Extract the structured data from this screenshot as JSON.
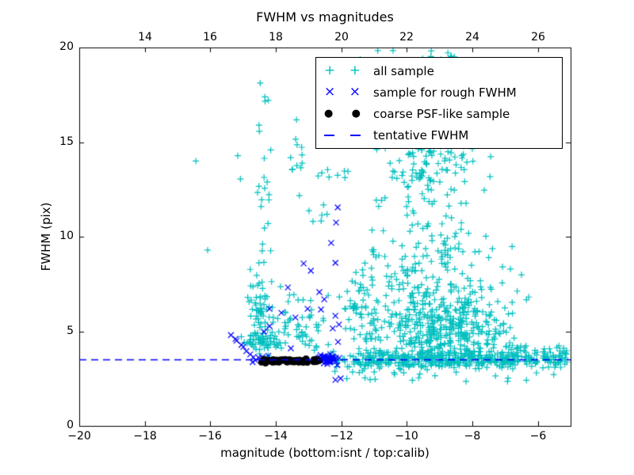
{
  "chart_data": {
    "type": "scatter",
    "title": "FWHM vs magnitudes",
    "xlabel": "magnitude (bottom:isnt / top:calib)",
    "ylabel": "FWHM (pix)",
    "xlim": [
      -20,
      -5
    ],
    "ylim": [
      0,
      20
    ],
    "grid": false,
    "x_ticks_bottom": {
      "values": [
        -20,
        -18,
        -16,
        -14,
        -12,
        -10,
        -8,
        -6
      ],
      "labels": [
        "−20",
        "−18",
        "−16",
        "−14",
        "−12",
        "−10",
        "−8",
        "−6"
      ]
    },
    "x_ticks_top": {
      "values": [
        14,
        16,
        18,
        20,
        22,
        24,
        26
      ],
      "labels": [
        "14",
        "16",
        "18",
        "20",
        "22",
        "24",
        "26"
      ],
      "offset_from_bottom": 32
    },
    "y_ticks": {
      "values": [
        0,
        5,
        10,
        15,
        20
      ],
      "labels": [
        "0",
        "5",
        "10",
        "15",
        "20"
      ]
    },
    "tentative_fwhm": 3.5,
    "colors": {
      "all_sample": "#00bfbf",
      "rough_fwhm": "#0000ff",
      "psf_like": "#000000",
      "tentative_line": "#0000ff"
    },
    "legend": {
      "position": "upper-right",
      "entries": [
        {
          "label": "all sample",
          "marker": "plus",
          "color": "#00bfbf"
        },
        {
          "label": "sample for rough FWHM",
          "marker": "x",
          "color": "#0000ff"
        },
        {
          "label": "coarse PSF-like sample",
          "marker": "dot",
          "color": "#000000"
        },
        {
          "label": "tentative FWHM",
          "marker": "dashed-line",
          "color": "#0000ff"
        }
      ]
    },
    "series": [
      {
        "name": "all sample",
        "marker": "plus",
        "color": "#00bfbf",
        "clusters": [
          {
            "kind": "gauss",
            "n": 380,
            "mx": -9.0,
            "sx": 2.1,
            "my": 3.5,
            "sy": 0.22,
            "xmin": -12.45,
            "xmax": -5.08,
            "ymin": 2.95,
            "ymax": 4.15
          },
          {
            "kind": "uniform",
            "n": 70,
            "xmin": -7.2,
            "xmax": -5.1,
            "ymin": 3.05,
            "ymax": 4.3
          },
          {
            "kind": "gauss",
            "n": 330,
            "mx": -8.85,
            "sx": 0.95,
            "my": 4.9,
            "sy": 1.15,
            "xmin": -11.5,
            "xmax": -6.2,
            "ymin": 3.5,
            "ymax": 8.6
          },
          {
            "kind": "gauss",
            "n": 185,
            "mx": -8.95,
            "sx": 1.05,
            "my": 7.6,
            "sy": 2.3,
            "xmin": -11.6,
            "xmax": -6.3,
            "ymin": 5.0,
            "ymax": 13.4
          },
          {
            "kind": "gauss",
            "n": 105,
            "mx": -9.3,
            "sx": 0.85,
            "my": 13.7,
            "sy": 1.15,
            "xmin": -11.3,
            "xmax": -6.8,
            "ymin": 11.2,
            "ymax": 15.7
          },
          {
            "kind": "uniform",
            "n": 26,
            "xmin": -10.6,
            "xmax": -6.9,
            "ymin": 15.8,
            "ymax": 19.6
          },
          {
            "kind": "uniform",
            "n": 10,
            "xmin": -11.6,
            "xmax": -8.2,
            "ymin": 19.3,
            "ymax": 19.9
          },
          {
            "kind": "gauss",
            "n": 55,
            "mx": -14.5,
            "sx": 0.16,
            "my": 6.1,
            "sy": 1.5,
            "xmin": -14.9,
            "xmax": -14.1,
            "ymin": 3.9,
            "ymax": 8.3
          },
          {
            "kind": "gauss",
            "n": 48,
            "mx": -14.42,
            "sx": 0.26,
            "my": 4.4,
            "sy": 0.38,
            "xmin": -15.15,
            "xmax": -13.9,
            "ymin": 3.7,
            "ymax": 5.3
          },
          {
            "kind": "uniform",
            "n": 24,
            "xmin": -14.65,
            "xmax": -14.15,
            "ymin": 8.5,
            "ymax": 19.2
          },
          {
            "kind": "uniform",
            "n": 12,
            "xmin": -13.55,
            "xmax": -13.15,
            "ymin": 11.0,
            "ymax": 16.4
          },
          {
            "kind": "gauss",
            "n": 66,
            "mx": -13.4,
            "sx": 0.55,
            "my": 5.1,
            "sy": 0.95,
            "xmin": -14.4,
            "xmax": -12.3,
            "ymin": 3.6,
            "ymax": 7.6
          },
          {
            "kind": "uniform",
            "n": 8,
            "xmin": -12.95,
            "xmax": -11.6,
            "ymin": 12.9,
            "ymax": 13.6
          },
          {
            "kind": "uniform",
            "n": 6,
            "xmin": -13.0,
            "xmax": -12.4,
            "ymin": 10.8,
            "ymax": 11.8
          },
          {
            "kind": "uniform",
            "n": 26,
            "xmin": -12.3,
            "xmax": -5.3,
            "ymin": 2.3,
            "ymax": 3.05
          },
          {
            "kind": "gauss",
            "n": 40,
            "mx": -11.4,
            "sx": 0.3,
            "my": 5.5,
            "sy": 1.3,
            "xmin": -12.1,
            "xmax": -10.8,
            "ymin": 3.6,
            "ymax": 8.8
          },
          {
            "kind": "gauss",
            "n": 55,
            "mx": -10.8,
            "sx": 0.6,
            "my": 6.5,
            "sy": 1.9,
            "xmin": -12.0,
            "xmax": -9.5,
            "ymin": 3.6,
            "ymax": 11.0
          }
        ],
        "points": [
          [
            -16.44,
            14.0
          ],
          [
            -15.16,
            14.28
          ],
          [
            -15.08,
            13.05
          ],
          [
            -16.08,
            9.29
          ]
        ]
      },
      {
        "name": "sample for rough FWHM",
        "marker": "x",
        "color": "#0000ff",
        "clusters": [
          {
            "kind": "gauss",
            "n": 52,
            "mx": -12.42,
            "sx": 0.14,
            "my": 3.52,
            "sy": 0.11,
            "xmin": -12.75,
            "xmax": -12.05,
            "ymin": 3.2,
            "ymax": 3.95
          },
          {
            "kind": "gauss",
            "n": 8,
            "mx": -14.45,
            "sx": 0.22,
            "my": 3.55,
            "sy": 0.12,
            "xmin": -14.8,
            "xmax": -14.1,
            "ymin": 3.3,
            "ymax": 3.8
          }
        ],
        "points": [
          [
            -13.15,
            8.58
          ],
          [
            -12.93,
            8.2
          ],
          [
            -12.18,
            8.62
          ],
          [
            -13.63,
            7.32
          ],
          [
            -12.67,
            7.07
          ],
          [
            -12.52,
            6.69
          ],
          [
            -14.19,
            6.19
          ],
          [
            -13.83,
            5.98
          ],
          [
            -13.03,
            6.19
          ],
          [
            -12.62,
            6.15
          ],
          [
            -13.4,
            5.73
          ],
          [
            -12.18,
            5.82
          ],
          [
            -14.19,
            5.27
          ],
          [
            -14.36,
            4.98
          ],
          [
            -15.23,
            4.6
          ],
          [
            -14.99,
            4.18
          ],
          [
            -13.54,
            4.1
          ],
          [
            -12.26,
            5.15
          ],
          [
            -12.07,
            5.36
          ],
          [
            -12.11,
            11.55
          ],
          [
            -12.16,
            10.75
          ],
          [
            -12.31,
            9.67
          ],
          [
            -12.02,
            2.51
          ],
          [
            -12.18,
            2.43
          ],
          [
            -12.1,
            4.44
          ],
          [
            -15.37,
            4.8
          ],
          [
            -15.2,
            4.5
          ],
          [
            -15.05,
            4.28
          ],
          [
            -14.9,
            3.95
          ],
          [
            -14.78,
            3.78
          ]
        ]
      },
      {
        "name": "coarse PSF-like sample",
        "marker": "dot",
        "color": "#000000",
        "clusters": [
          {
            "kind": "gauss",
            "n": 16,
            "mx": -14.3,
            "sx": 0.1,
            "my": 3.43,
            "sy": 0.055,
            "xmin": -14.56,
            "xmax": -14.05,
            "ymin": 3.26,
            "ymax": 3.6
          },
          {
            "kind": "gauss",
            "n": 13,
            "mx": -13.92,
            "sx": 0.09,
            "my": 3.46,
            "sy": 0.05,
            "xmin": -14.15,
            "xmax": -13.7,
            "ymin": 3.3,
            "ymax": 3.62
          },
          {
            "kind": "gauss",
            "n": 15,
            "mx": -13.52,
            "sx": 0.12,
            "my": 3.44,
            "sy": 0.055,
            "xmin": -13.78,
            "xmax": -13.28,
            "ymin": 3.28,
            "ymax": 3.6
          },
          {
            "kind": "gauss",
            "n": 13,
            "mx": -13.15,
            "sx": 0.1,
            "my": 3.42,
            "sy": 0.05,
            "xmin": -13.4,
            "xmax": -12.9,
            "ymin": 3.27,
            "ymax": 3.58
          },
          {
            "kind": "gauss",
            "n": 11,
            "mx": -12.77,
            "sx": 0.1,
            "my": 3.45,
            "sy": 0.05,
            "xmin": -13.0,
            "xmax": -12.58,
            "ymin": 3.3,
            "ymax": 3.6
          },
          {
            "kind": "uniform",
            "n": 22,
            "xmin": -14.5,
            "xmax": -12.62,
            "ymin": 3.35,
            "ymax": 3.56
          }
        ],
        "points": []
      },
      {
        "name": "tentative FWHM",
        "marker": "dashed-line",
        "color": "#0000ff",
        "y": 3.5
      }
    ]
  }
}
